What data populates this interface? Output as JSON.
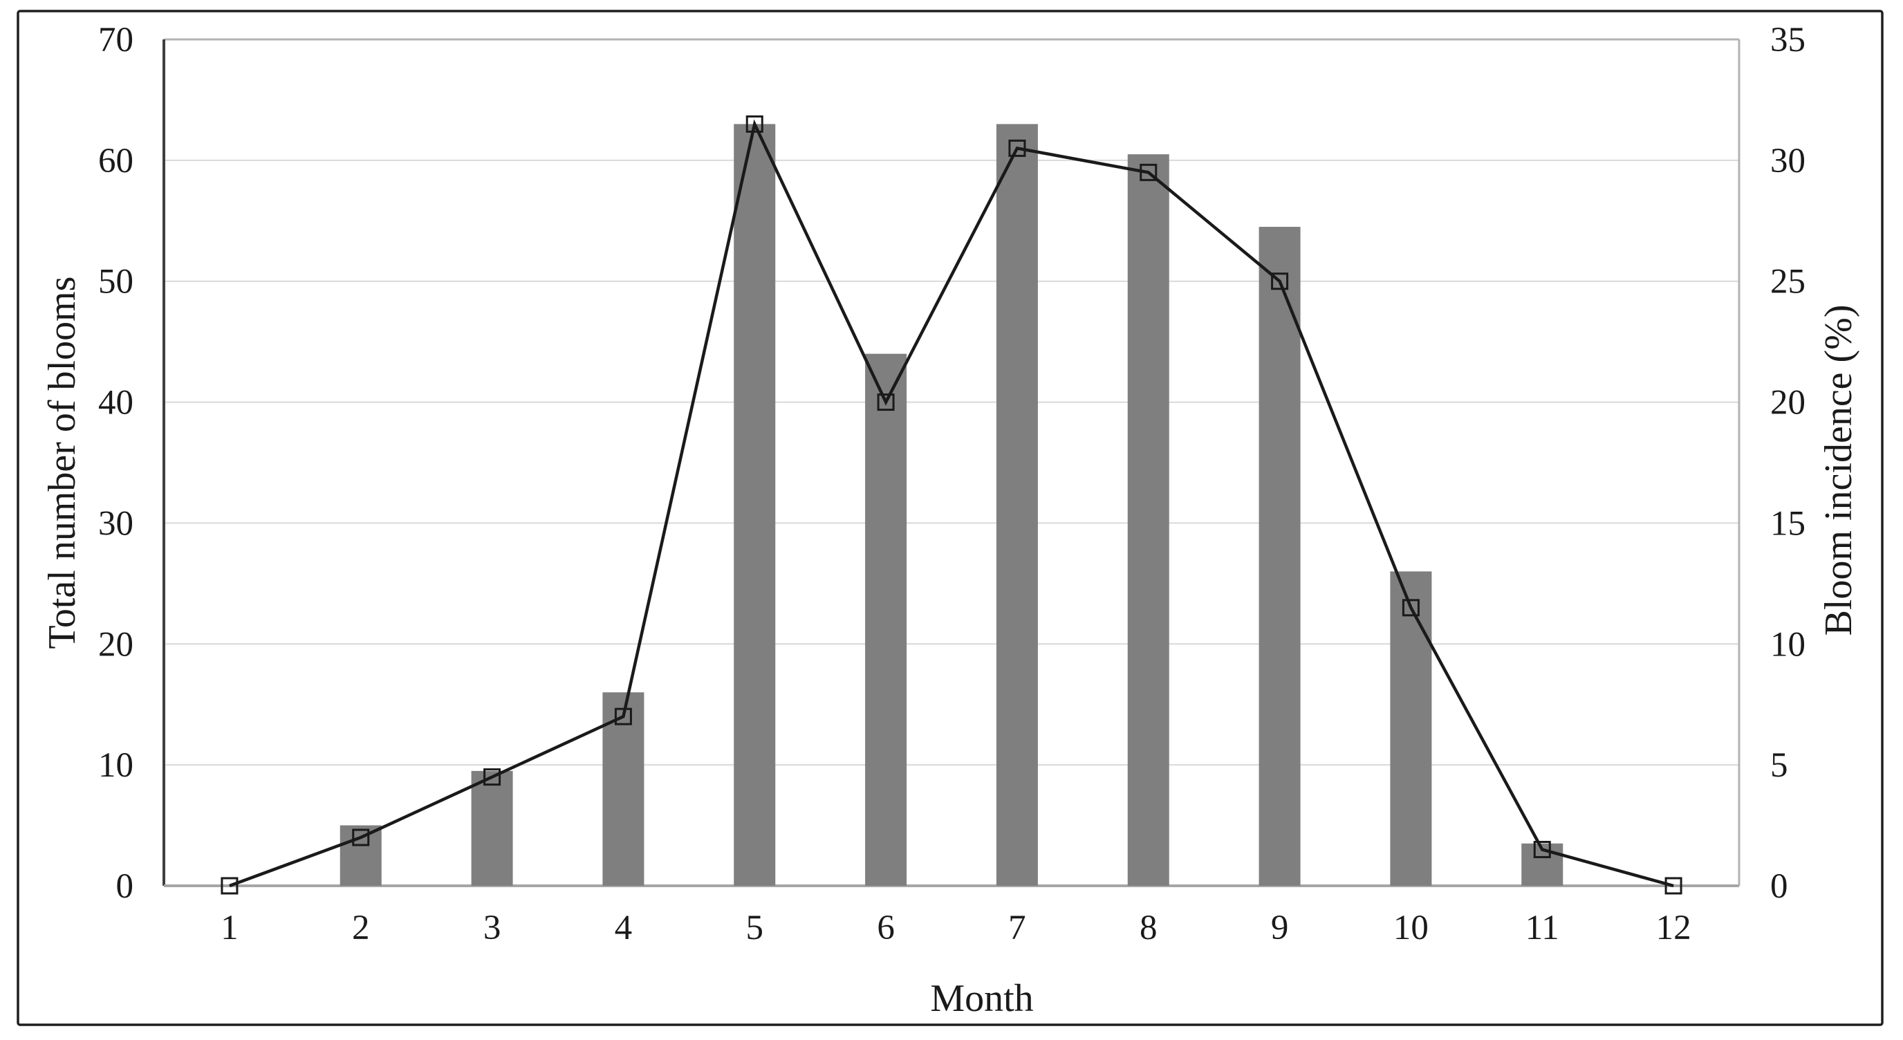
{
  "figure": {
    "background": "#ffffff",
    "border_color": "#1f1f1f"
  },
  "chart_data": {
    "type": "combo-bar-line",
    "title": "",
    "xlabel": "Month",
    "categories": [
      1,
      2,
      3,
      4,
      5,
      6,
      7,
      8,
      9,
      10,
      11,
      12
    ],
    "series": [
      {
        "name": "Total number of blooms",
        "type": "bar",
        "axis": "left",
        "color": "#7f7f7f",
        "values": [
          0,
          5,
          9.5,
          16,
          63,
          44,
          63,
          60.5,
          54.5,
          26,
          3.5,
          0
        ]
      },
      {
        "name": "Bloom incidence (%)",
        "type": "line",
        "axis": "right",
        "color": "#1a1a1a",
        "marker": "open-square",
        "marker_fill": "none",
        "values": [
          0,
          2,
          4.5,
          7,
          31.5,
          20,
          30.5,
          29.5,
          25,
          11.5,
          1.5,
          0
        ]
      }
    ],
    "left_axis": {
      "title": "Total number of blooms",
      "min": 0,
      "max": 70,
      "tick_step": 10,
      "ticks": [
        0,
        10,
        20,
        30,
        40,
        50,
        60,
        70
      ]
    },
    "right_axis": {
      "title": "Bloom incidence (%)",
      "min": 0,
      "max": 35,
      "tick_step": 5,
      "ticks": [
        0,
        5,
        10,
        15,
        20,
        25,
        30,
        35
      ]
    },
    "grid": {
      "show": true,
      "color": "#d9d9d9"
    },
    "frame_colors": {
      "top": "#b3b3b3",
      "right": "#b3b3b3",
      "left": "#3f3f3f",
      "bottom": "#a6a6a6"
    },
    "legend": {
      "show": false
    }
  }
}
